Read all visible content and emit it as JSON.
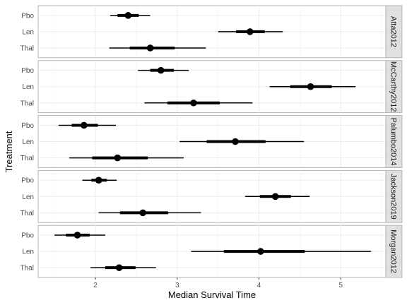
{
  "chart_data": {
    "type": "forest",
    "xlabel": "Median Survival Time",
    "ylabel": "Treatment",
    "xlim": [
      1.3,
      5.55
    ],
    "xticks": [
      2,
      3,
      4,
      5
    ],
    "categories": [
      "Pbo",
      "Len",
      "Thal"
    ],
    "grid": true,
    "facets": [
      {
        "name": "Atta2012",
        "rows": [
          {
            "treatment": "Pbo",
            "median": 2.4,
            "inner": [
              2.27,
              2.53
            ],
            "outer": [
              2.18,
              2.67
            ]
          },
          {
            "treatment": "Len",
            "median": 3.89,
            "inner": [
              3.72,
              4.07
            ],
            "outer": [
              3.5,
              4.29
            ]
          },
          {
            "treatment": "Thal",
            "median": 2.67,
            "inner": [
              2.42,
              2.97
            ],
            "outer": [
              2.17,
              3.35
            ]
          }
        ]
      },
      {
        "name": "McCarthy2012",
        "rows": [
          {
            "treatment": "Pbo",
            "median": 2.8,
            "inner": [
              2.67,
              2.96
            ],
            "outer": [
              2.52,
              3.14
            ]
          },
          {
            "treatment": "Len",
            "median": 4.63,
            "inner": [
              4.38,
              4.89
            ],
            "outer": [
              4.13,
              5.18
            ]
          },
          {
            "treatment": "Thal",
            "median": 3.2,
            "inner": [
              2.88,
              3.52
            ],
            "outer": [
              2.6,
              3.92
            ]
          }
        ]
      },
      {
        "name": "Palumbo2014",
        "rows": [
          {
            "treatment": "Pbo",
            "median": 1.86,
            "inner": [
              1.71,
              2.03
            ],
            "outer": [
              1.55,
              2.25
            ]
          },
          {
            "treatment": "Len",
            "median": 3.71,
            "inner": [
              3.36,
              4.08
            ],
            "outer": [
              3.03,
              4.55
            ]
          },
          {
            "treatment": "Thal",
            "median": 2.27,
            "inner": [
              1.96,
              2.64
            ],
            "outer": [
              1.68,
              3.08
            ]
          }
        ]
      },
      {
        "name": "Jackson2019",
        "rows": [
          {
            "treatment": "Pbo",
            "median": 2.04,
            "inner": [
              1.95,
              2.14
            ],
            "outer": [
              1.84,
              2.26
            ]
          },
          {
            "treatment": "Len",
            "median": 4.2,
            "inner": [
              4.01,
              4.39
            ],
            "outer": [
              3.83,
              4.62
            ]
          },
          {
            "treatment": "Thal",
            "median": 2.58,
            "inner": [
              2.3,
              2.89
            ],
            "outer": [
              2.04,
              3.29
            ]
          }
        ]
      },
      {
        "name": "Morgan2012",
        "rows": [
          {
            "treatment": "Pbo",
            "median": 1.78,
            "inner": [
              1.64,
              1.93
            ],
            "outer": [
              1.5,
              2.12
            ]
          },
          {
            "treatment": "Len",
            "median": 4.02,
            "inner": [
              3.57,
              4.56
            ],
            "outer": [
              3.17,
              5.37
            ]
          },
          {
            "treatment": "Thal",
            "median": 2.29,
            "inner": [
              2.12,
              2.49
            ],
            "outer": [
              1.94,
              2.74
            ]
          }
        ]
      }
    ]
  }
}
